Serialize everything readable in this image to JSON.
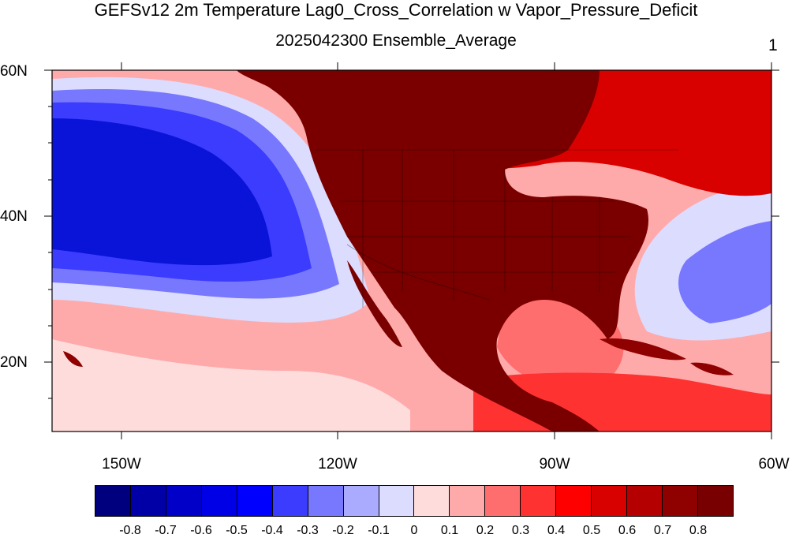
{
  "title": "GEFSv12 2m Temperature Lag0_Cross_Correlation w Vapor_Pressure_Deficit",
  "subtitle": "2025042300 Ensemble_Average",
  "panel_label": "1",
  "axes": {
    "lat_labels": [
      "60N",
      "40N",
      "20N"
    ],
    "lon_labels": [
      "150W",
      "120W",
      "90W",
      "60W"
    ]
  },
  "colorbar": {
    "labels": [
      "-0.8",
      "-0.7",
      "-0.6",
      "-0.5",
      "-0.4",
      "-0.3",
      "-0.2",
      "-0.1",
      "0",
      "0.1",
      "0.2",
      "0.3",
      "0.4",
      "0.5",
      "0.6",
      "0.7",
      "0.8"
    ],
    "colors": [
      "#00007f",
      "#0000a6",
      "#0000c8",
      "#0000e6",
      "#0000ff",
      "#3c3cff",
      "#7878ff",
      "#aaaaff",
      "#dcdcff",
      "#ffdcdc",
      "#ffaaaa",
      "#ff6e6e",
      "#ff3232",
      "#ff0000",
      "#d90000",
      "#b40000",
      "#8f0000",
      "#780000"
    ]
  },
  "palette": {
    "ocean_deep_blue": "#0a14d8",
    "ocean_blue": "#2b3bff",
    "ocean_light_blue": "#7b86ff",
    "neutral": "#e4e4ff",
    "light_red": "#ffaaaa",
    "red": "#ff3232",
    "land_dark_red": "#7a0000"
  }
}
